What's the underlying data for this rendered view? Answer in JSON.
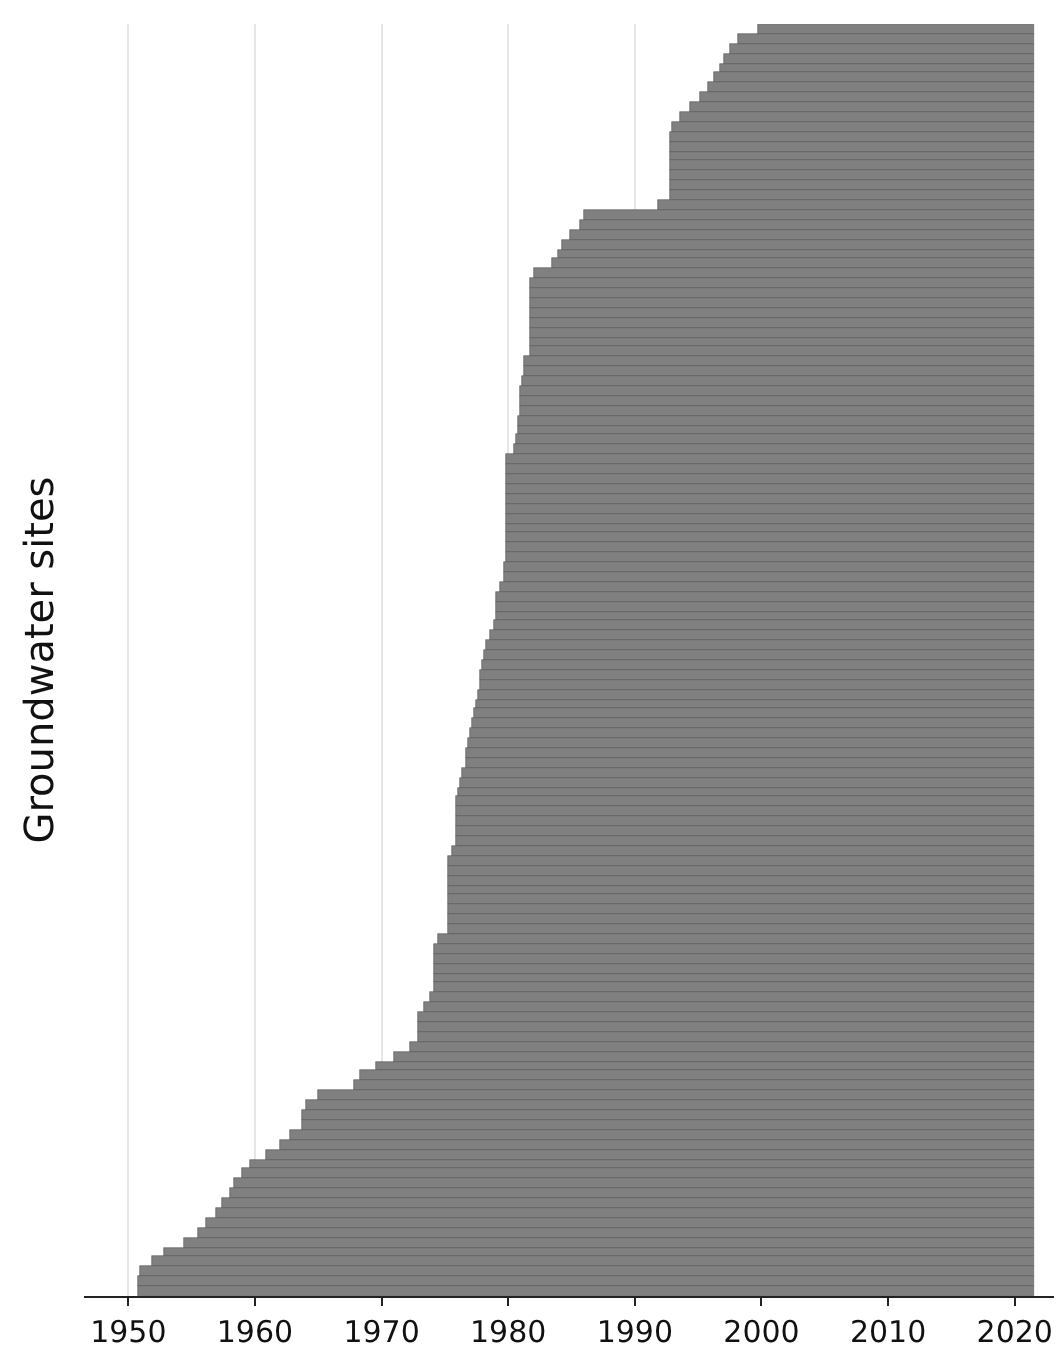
{
  "chart_data": {
    "type": "bar",
    "orientation": "horizontal",
    "ylabel": "Groundwater sites",
    "categories": [
      null,
      null,
      null,
      null,
      null,
      null,
      null,
      null,
      null,
      null,
      null,
      null,
      null,
      null,
      null,
      null,
      null,
      null,
      null,
      null,
      null,
      null,
      null,
      null,
      null,
      null,
      null,
      null,
      null,
      null,
      null,
      null,
      null,
      null,
      null,
      null,
      null,
      null,
      null,
      null,
      null,
      null,
      null,
      null,
      null,
      null,
      null,
      null,
      null,
      null,
      null,
      null,
      null,
      null,
      null,
      null,
      null,
      null,
      null,
      null,
      null,
      null,
      null,
      null,
      null,
      null,
      null,
      null,
      null,
      null,
      null,
      null,
      null,
      null,
      null,
      null,
      null,
      null,
      null,
      null,
      null,
      null,
      null,
      null,
      null,
      null,
      null,
      null,
      null,
      null,
      null,
      null,
      null,
      null,
      null,
      null,
      null,
      null,
      null,
      null,
      null,
      null,
      null,
      null,
      null,
      null,
      null,
      null,
      null,
      null,
      null,
      null,
      null,
      null,
      null,
      null,
      null,
      null,
      null,
      null,
      null,
      null,
      null,
      null,
      null,
      null,
      null,
      null,
      null,
      null
    ],
    "base": [
      1999.7,
      1998.2,
      1997.5,
      1997.1,
      1996.8,
      1996.3,
      1995.8,
      1995.1,
      1994.4,
      1993.6,
      1993.0,
      1992.8,
      1992.8,
      1992.8,
      1992.8,
      1992.8,
      1992.8,
      1992.8,
      1991.9,
      1986.0,
      1985.6,
      1984.9,
      1984.3,
      1984.0,
      1983.4,
      1982.0,
      1981.7,
      1981.7,
      1981.7,
      1981.7,
      1981.7,
      1981.7,
      1981.7,
      1981.7,
      1981.3,
      1981.2,
      1981.1,
      1981.0,
      1981.0,
      1980.9,
      1980.8,
      1980.7,
      1980.6,
      1980.5,
      1979.9,
      1979.9,
      1979.9,
      1979.9,
      1979.9,
      1979.9,
      1979.9,
      1979.9,
      1979.9,
      1979.9,
      1979.9,
      1979.7,
      1979.6,
      1979.3,
      1979.1,
      1979.0,
      1979.0,
      1978.9,
      1978.6,
      1978.3,
      1978.1,
      1978.0,
      1977.8,
      1977.7,
      1977.6,
      1977.5,
      1977.3,
      1977.1,
      1977.0,
      1976.8,
      1976.7,
      1976.6,
      1976.4,
      1976.2,
      1976.1,
      1975.9,
      1975.9,
      1975.9,
      1975.9,
      1975.9,
      1975.6,
      1975.2,
      1975.2,
      1975.2,
      1975.2,
      1975.2,
      1975.2,
      1975.2,
      1975.2,
      1974.5,
      1974.1,
      1974.1,
      1974.1,
      1974.1,
      1974.1,
      1973.8,
      1973.3,
      1972.9,
      1972.9,
      1972.9,
      1972.3,
      1971.0,
      1969.6,
      1968.3,
      1967.8,
      1965.0,
      1964.0,
      1963.7,
      1963.7,
      1962.8,
      1961.9,
      1960.9,
      1959.6,
      1958.9,
      1958.4,
      1958.0,
      1957.4,
      1956.9,
      1956.1,
      1955.5,
      1954.4,
      1952.8,
      1951.9,
      1950.9,
      1950.8,
      1950.8
    ],
    "values": [
      21.8,
      23.3,
      24.0,
      24.4,
      24.7,
      25.2,
      25.7,
      26.4,
      27.1,
      27.9,
      28.5,
      28.7,
      28.7,
      28.7,
      28.7,
      28.7,
      28.7,
      28.7,
      29.6,
      35.5,
      35.9,
      36.6,
      37.2,
      37.5,
      38.1,
      39.5,
      39.8,
      39.8,
      39.8,
      39.8,
      39.8,
      39.8,
      39.8,
      39.8,
      40.2,
      40.3,
      40.4,
      40.5,
      40.5,
      40.6,
      40.7,
      40.8,
      40.9,
      41.0,
      41.6,
      41.6,
      41.6,
      41.6,
      41.6,
      41.6,
      41.6,
      41.6,
      41.6,
      41.6,
      41.6,
      41.8,
      41.9,
      42.2,
      42.4,
      42.5,
      42.5,
      42.6,
      42.9,
      43.2,
      43.4,
      43.5,
      43.7,
      43.8,
      43.9,
      44.0,
      44.2,
      44.4,
      44.5,
      44.7,
      44.8,
      44.9,
      45.1,
      45.3,
      45.4,
      45.6,
      45.6,
      45.6,
      45.6,
      45.6,
      45.9,
      46.3,
      46.3,
      46.3,
      46.3,
      46.3,
      46.3,
      46.3,
      46.3,
      47.0,
      47.4,
      47.4,
      47.4,
      47.4,
      47.4,
      47.7,
      48.2,
      48.6,
      48.6,
      48.6,
      49.2,
      50.5,
      51.9,
      53.2,
      53.7,
      56.5,
      57.5,
      57.8,
      57.8,
      58.7,
      59.6,
      60.6,
      61.9,
      62.6,
      63.1,
      63.5,
      64.1,
      64.6,
      65.4,
      66.0,
      67.1,
      68.7,
      69.6,
      70.6,
      70.7,
      70.7
    ],
    "color": "#808080",
    "xlim": [
      1946.5,
      2023.1
    ],
    "xticks": [
      1950,
      1960,
      1970,
      1980,
      1990,
      2000,
      2010,
      2020
    ],
    "grid": "x",
    "tick_labels": "x"
  }
}
